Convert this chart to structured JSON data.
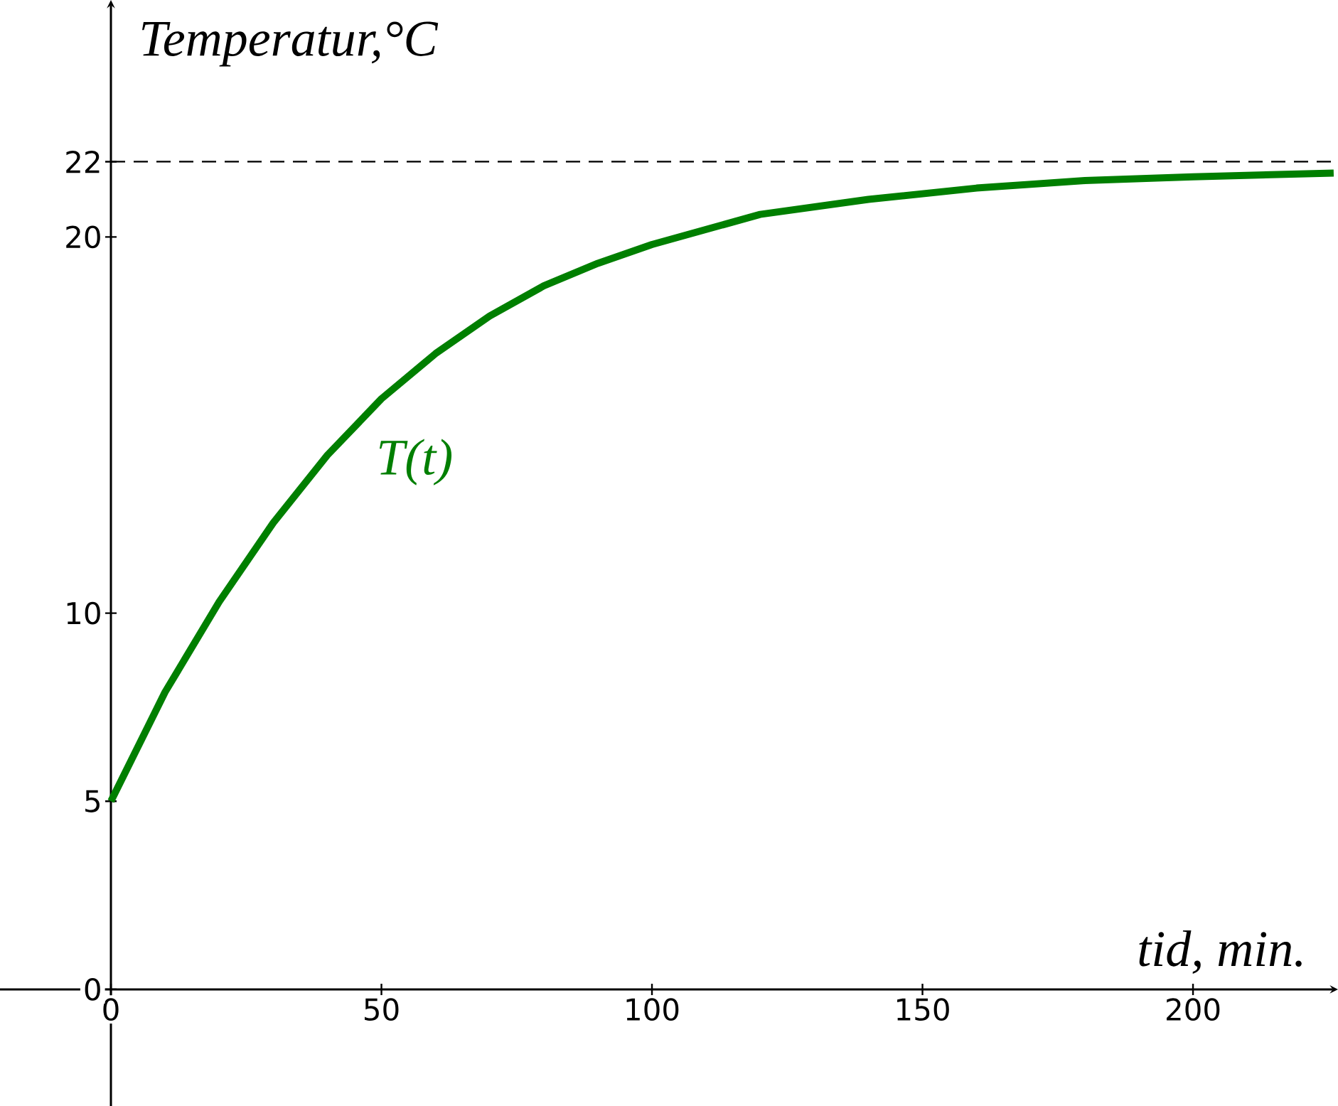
{
  "chart_data": {
    "type": "line",
    "xlabel": "tid, min.",
    "ylabel": "Temperatur,°C",
    "xlim": [
      -20.5,
      226.8
    ],
    "ylim": [
      -3.1,
      26.3
    ],
    "xticks": [
      0,
      50,
      100,
      150,
      200
    ],
    "yticks": [
      0,
      5,
      10,
      20,
      22
    ],
    "x": [
      0,
      10,
      20,
      30,
      40,
      50,
      60,
      70,
      80,
      90,
      100,
      120,
      140,
      160,
      180,
      200,
      226
    ],
    "series": [
      {
        "name": "T(t)",
        "color": "#007f00",
        "values": [
          5,
          7.9,
          10.3,
          12.4,
          14.2,
          15.7,
          16.9,
          17.9,
          18.7,
          19.3,
          19.8,
          20.6,
          21.0,
          21.3,
          21.5,
          21.6,
          21.7
        ]
      }
    ],
    "ref_lines": [
      {
        "axis": "y",
        "value": 22,
        "line_style": "dashed",
        "color": "#000000"
      }
    ],
    "grid": false,
    "legend": false,
    "marker": "none",
    "line_style": "solid"
  }
}
